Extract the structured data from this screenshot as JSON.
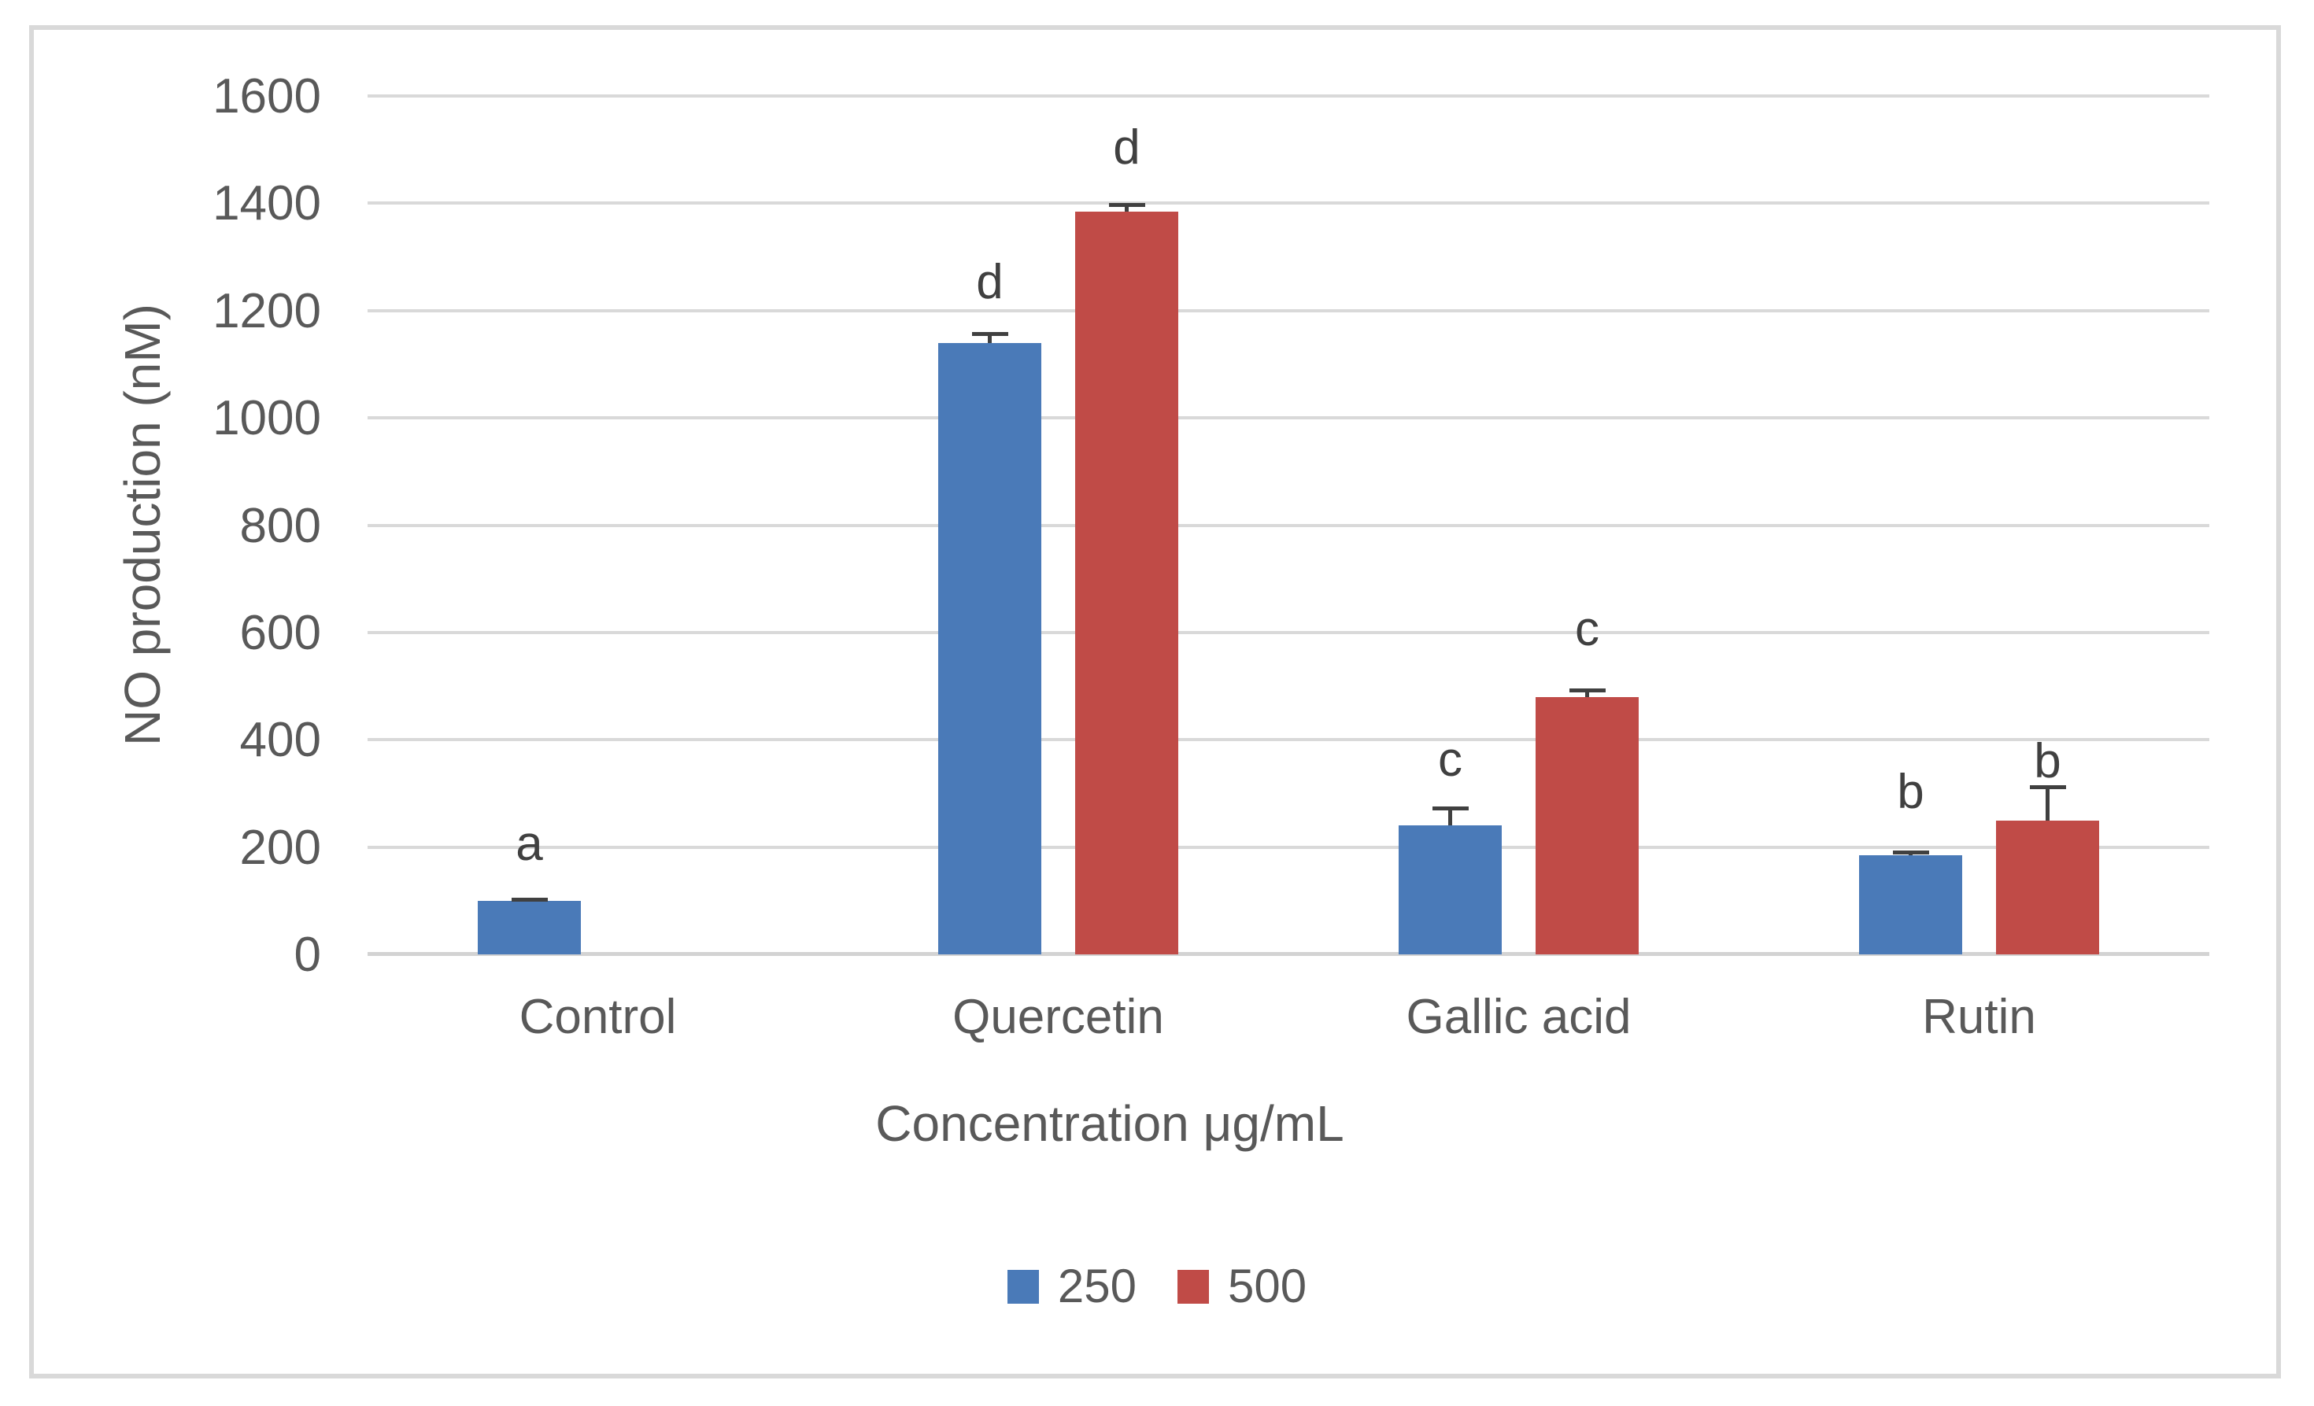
{
  "chart_data": {
    "type": "bar",
    "title": "",
    "xlabel": "Concentration μg/mL",
    "ylabel": "NO production (nM)",
    "categories": [
      "Control",
      "Quercetin",
      "Gallic acid",
      "Rutin"
    ],
    "series": [
      {
        "name": "250",
        "color": "#4a7ab8",
        "values": [
          100,
          1140,
          240,
          185
        ],
        "errors": [
          5,
          20,
          35,
          8
        ],
        "letters": [
          "a",
          "d",
          "c",
          "b"
        ],
        "letter_y": [
          206,
          1253,
          362,
          302
        ]
      },
      {
        "name": "500",
        "color": "#c04b47",
        "values": [
          null,
          1385,
          480,
          250
        ],
        "errors": [
          null,
          15,
          15,
          65
        ],
        "letters": [
          null,
          "d",
          "c",
          "b"
        ],
        "letter_y": [
          null,
          1503,
          605,
          359
        ]
      }
    ],
    "ylim": [
      0,
      1600
    ],
    "ytick_step": 200,
    "y_ticks": [
      0,
      200,
      400,
      600,
      800,
      1000,
      1200,
      1400,
      1600
    ],
    "grid": true,
    "legend_position": "bottom-center",
    "error_bar_direction": "plus"
  },
  "theme": {
    "gridline_color": "#d9d9d9",
    "axis_line_color": "#d3d3d3",
    "frame_border_color": "#d9d9d9",
    "text_color": "#595959",
    "annotation_color": "#404040",
    "background_color": "#ffffff"
  }
}
